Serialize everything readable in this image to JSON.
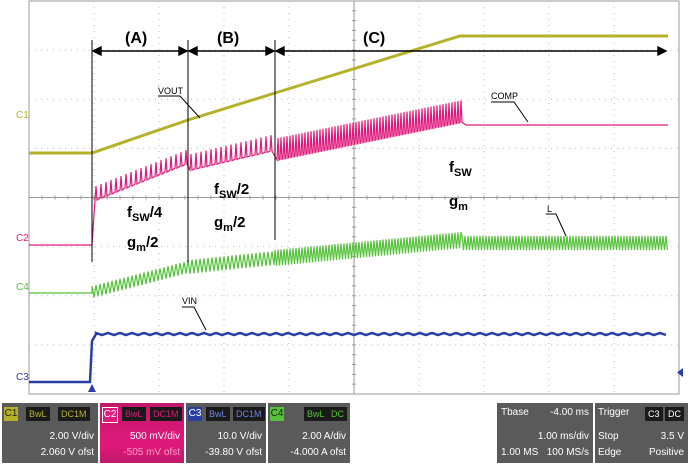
{
  "channels": {
    "c1": {
      "tag": "C1",
      "name": "VOUT",
      "color": "#b5b22a",
      "coupling_bw": "BwL",
      "coupling": "DC1M",
      "scale": "2.00 V/div",
      "offset": "2.060 V ofst"
    },
    "c2": {
      "tag": "C2",
      "name": "COMP",
      "color": "#e0197c",
      "coupling_bw": "BwL",
      "coupling": "DC1M",
      "scale": "500 mV/div",
      "offset": "-505 mV ofst"
    },
    "c3": {
      "tag": "C3",
      "name": "VIN",
      "color": "#2a3fa3",
      "coupling_bw": "BwL",
      "coupling": "DC1M",
      "scale": "10.0 V/div",
      "offset": "-39.80 V ofst"
    },
    "c4": {
      "tag": "C4",
      "name": "IL",
      "color": "#55c23a",
      "coupling_bw": "BwL",
      "coupling": "DC",
      "scale": "2.00 A/div",
      "offset": "-4.000 A ofst"
    }
  },
  "annotations": {
    "phase_a": "(A)",
    "phase_b": "(B)",
    "phase_c": "(C)",
    "a_freq_base": "f",
    "a_freq_sub": "SW",
    "a_freq_tail": "/4",
    "a_gm_base": "g",
    "a_gm_sub": "m",
    "a_gm_tail": "/2",
    "b_freq_base": "f",
    "b_freq_sub": "SW",
    "b_freq_tail": "/2",
    "b_gm_base": "g",
    "b_gm_sub": "m",
    "b_gm_tail": "/2",
    "c_freq_base": "f",
    "c_freq_sub": "SW",
    "c_gm_base": "g",
    "c_gm_sub": "m",
    "label_vout": "VOUT",
    "label_comp": "COMP",
    "label_il": "L",
    "label_vin": "VIN"
  },
  "timebase": {
    "label": "Tbase",
    "delay": "-4.00 ms",
    "scale": "1.00 ms/div",
    "points": "1.00 MS",
    "rate": "100 MS/s"
  },
  "trigger": {
    "label": "Trigger",
    "source": "C3",
    "coupling": "DC",
    "mode": "Stop",
    "level": "3.5 V",
    "type": "Edge",
    "slope": "Positive"
  },
  "colors": {
    "grid_bg": "#ffffff",
    "grid_line": "#9a9a9a",
    "panel_bg": "#5a5a5a",
    "panel_c2_bg": "#b01660",
    "panel_c3_bg": "#3a4f95",
    "panel_c4_bg": "#5a5a5a"
  }
}
